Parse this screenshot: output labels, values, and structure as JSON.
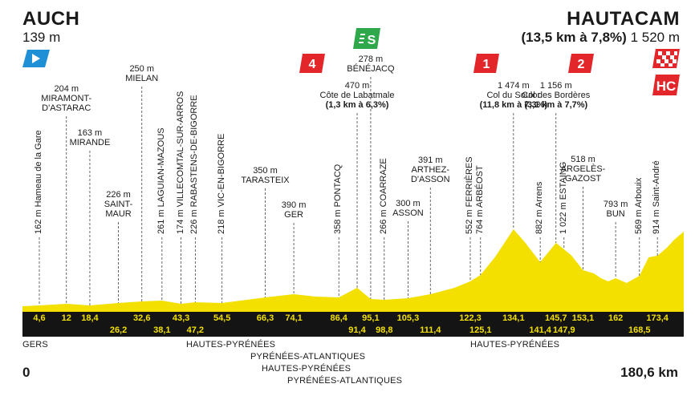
{
  "start": {
    "name": "AUCH",
    "altitude": "139 m"
  },
  "finish": {
    "name": "HAUTACAM",
    "climb": "(13,5 km à 7,8%)",
    "altitude": "1 520 m"
  },
  "distance": {
    "start": "0",
    "end": "180,6 km"
  },
  "colors": {
    "profile_fill": "#f3e000",
    "km_band": "#141414",
    "km_text": "#f3e000",
    "category_red": "#e3262a",
    "sprint_green": "#2ea84a",
    "start_blue": "#1f8fd6"
  },
  "locations": [
    {
      "kind": "vertical",
      "text": "162 m Hameau de la Gare",
      "km": 4.6
    },
    {
      "kind": "horizontal",
      "lines": [
        "204 m",
        "MIRAMONT-",
        "D'ASTARAC"
      ],
      "km": 12
    },
    {
      "kind": "horizontal",
      "lines": [
        "163 m",
        "MIRANDE"
      ],
      "km": 18.4
    },
    {
      "kind": "horizontal",
      "lines": [
        "226 m",
        "SAINT-",
        "MAUR"
      ],
      "km": 26.2
    },
    {
      "kind": "horizontal",
      "lines": [
        "250 m",
        "MIELAN"
      ],
      "km": 32.6
    },
    {
      "kind": "vertical",
      "text": "261 m LAGUIAN-MAZOUS",
      "km": 38.1
    },
    {
      "kind": "vertical",
      "text": "174 m VILLECOMTAL-SUR-ARROS",
      "km": 43.3
    },
    {
      "kind": "vertical",
      "text": "226 m RABASTENS-DE-BIGORRE",
      "km": 47.2
    },
    {
      "kind": "vertical",
      "text": "218 m VIC-EN-BIGORRE",
      "km": 54.5
    },
    {
      "kind": "horizontal",
      "lines": [
        "350 m",
        "TARASTEIX"
      ],
      "km": 66.3
    },
    {
      "kind": "horizontal",
      "lines": [
        "390 m",
        "GER"
      ],
      "km": 74.1
    },
    {
      "kind": "vertical",
      "text": "358 m PONTACQ",
      "km": 86.4
    },
    {
      "kind": "horizontal",
      "lines": [
        "470 m",
        "Côte de Labatmale",
        "(1,3 km à 6,3%)"
      ],
      "km": 91.4,
      "badge": "4"
    },
    {
      "kind": "horizontal",
      "lines": [
        "278 m",
        "BÉNÉJACQ"
      ],
      "km": 95.1,
      "badge": "S"
    },
    {
      "kind": "vertical",
      "text": "266 m COARRAZE",
      "km": 98.8
    },
    {
      "kind": "horizontal",
      "lines": [
        "300 m",
        "ASSON"
      ],
      "km": 105.3
    },
    {
      "kind": "horizontal",
      "lines": [
        "391 m",
        "ARTHEZ-",
        "D'ASSON"
      ],
      "km": 111.4
    },
    {
      "kind": "vertical",
      "text": "552 m FERRIÈRES",
      "km": 122.3
    },
    {
      "kind": "vertical",
      "text": "764 m ARBÉOST",
      "km": 125.1
    },
    {
      "kind": "horizontal",
      "lines": [
        "1 474 m",
        "Col du Soulor",
        "(11,8 km à 7,3%)"
      ],
      "km": 134.1,
      "badge": "1"
    },
    {
      "kind": "vertical",
      "text": "882 m Arrens",
      "km": 141.4
    },
    {
      "kind": "horizontal",
      "lines": [
        "1 156 m",
        "Col des Bordères",
        "(3,1 km à 7,7%)"
      ],
      "km": 145.7,
      "badge": "2"
    },
    {
      "kind": "vertical",
      "text": "1 022 m ESTAING",
      "km": 147.9
    },
    {
      "kind": "horizontal",
      "lines": [
        "518 m",
        "ARGELÈS-",
        "GAZOST"
      ],
      "km": 153.1
    },
    {
      "kind": "horizontal",
      "lines": [
        "793 m",
        "BUN"
      ],
      "km": 162
    },
    {
      "kind": "vertical",
      "text": "569 m Arbouix",
      "km": 168.5
    },
    {
      "kind": "vertical",
      "text": "914 m Saint-André",
      "km": 173.4
    }
  ],
  "km_marks_top": [
    "4,6",
    "12",
    "18,4",
    "32,6",
    "43,3",
    "54,5",
    "66,3",
    "74,1",
    "86,4",
    "95,1",
    "105,3",
    "122,3",
    "134,1",
    "145,7",
    "153,1",
    "162",
    "173,4"
  ],
  "km_marks_bottom": [
    "26,2",
    "38,1",
    "47,2",
    "91,4",
    "98,8",
    "111,4",
    "125,1",
    "141,4",
    "147,9",
    "168,5"
  ],
  "regions": [
    "GERS",
    "HAUTES-PYRÉNÉES",
    "PYRÉNÉES-ATLANTIQUES",
    "HAUTES-PYRÉNÉES",
    "PYRÉNÉES-ATLANTIQUES",
    "HAUTES-PYRÉNÉES"
  ],
  "badges": {
    "cat4": "4",
    "sprint": "S",
    "cat1": "1",
    "cat2": "2",
    "hc": "HC"
  }
}
